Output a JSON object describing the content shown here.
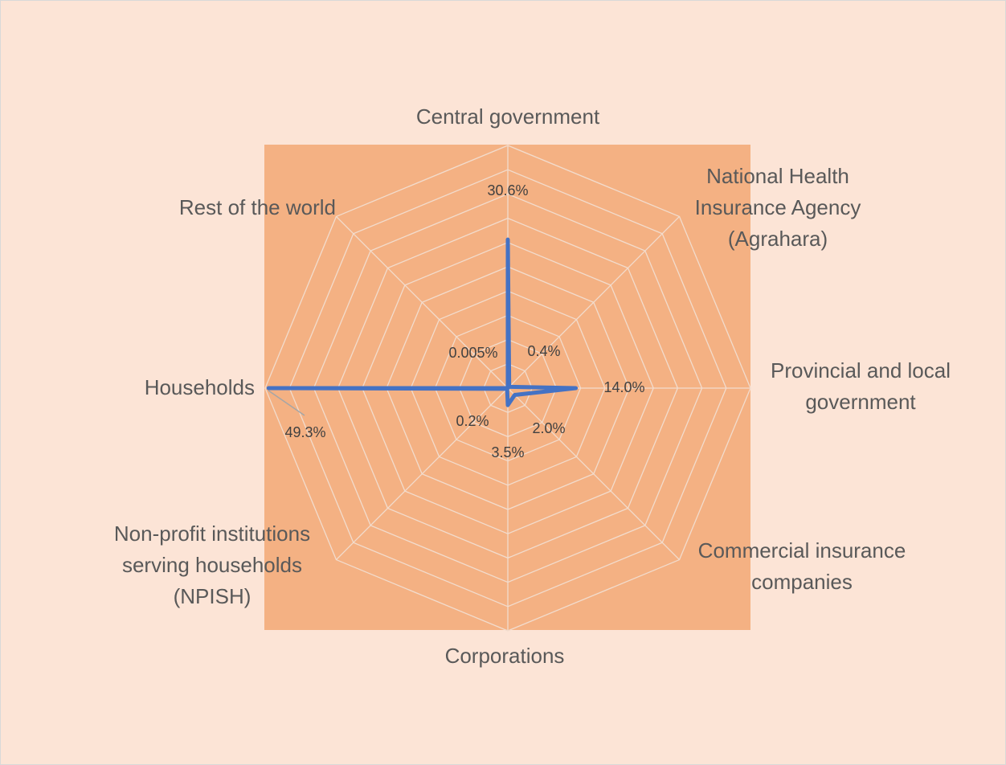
{
  "chart_data": {
    "type": "radar",
    "categories": [
      "Central government",
      "National Health Insurance Agency (Agrahara)",
      "Provincial and local government",
      "Commercial insurance companies",
      "Corporations",
      "Non-profit institutions serving households (NPISH)",
      "Households",
      "Rest of the world"
    ],
    "values": [
      30.6,
      0.4,
      14.0,
      2.0,
      3.5,
      0.2,
      49.3,
      0.005
    ],
    "value_labels": [
      "30.6%",
      "0.4%",
      "14.0%",
      "2.0%",
      "3.5%",
      "0.2%",
      "49.3%",
      "0.005%"
    ],
    "color": "#4472c4",
    "ylim": [
      0,
      50
    ],
    "yticks": [
      0,
      5,
      10,
      15,
      20,
      25,
      30,
      35,
      40,
      45,
      50
    ],
    "grid": true
  }
}
